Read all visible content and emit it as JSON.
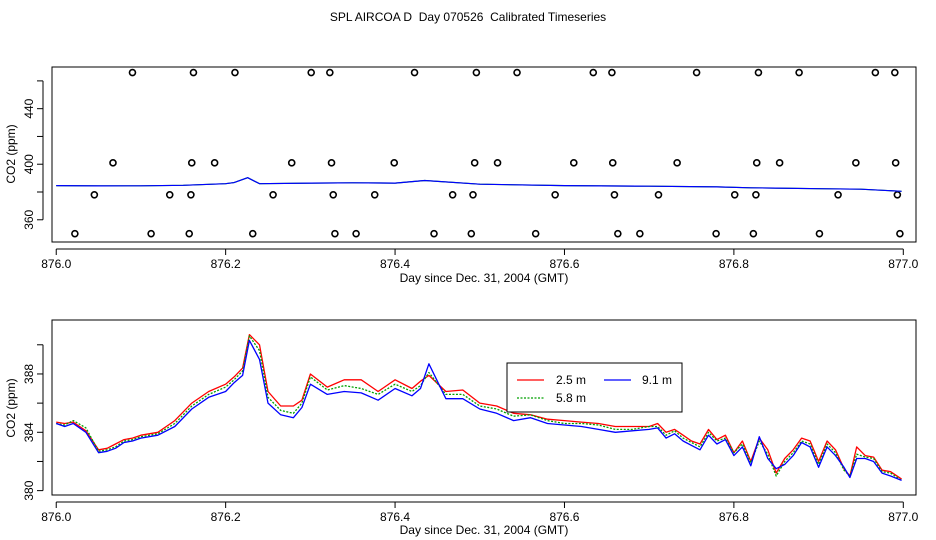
{
  "page_title": "SPL AIRCOA D  Day 070526  Calibrated Timeseries",
  "chart_data": [
    {
      "type": "scatter",
      "xlabel": "Day since Dec. 31, 2004 (GMT)",
      "ylabel": "CO2 (ppm)",
      "xlim": [
        875.995,
        877.015
      ],
      "ylim": [
        344,
        470
      ],
      "xticks": [
        876.0,
        876.2,
        876.4,
        876.6,
        876.8,
        877.0
      ],
      "xtick_labels": [
        "876.0",
        "876.2",
        "876.4",
        "876.6",
        "876.8",
        "877.0"
      ],
      "yticks": [
        360,
        400,
        440
      ],
      "ytick_labels": [
        "360",
        "400",
        "440"
      ],
      "yticks_minor": [
        380,
        420,
        460
      ],
      "calibration_points": [
        {
          "x": 876.022,
          "y": 350
        },
        {
          "x": 876.112,
          "y": 350
        },
        {
          "x": 876.157,
          "y": 350
        },
        {
          "x": 876.232,
          "y": 350
        },
        {
          "x": 876.329,
          "y": 350
        },
        {
          "x": 876.354,
          "y": 350
        },
        {
          "x": 876.446,
          "y": 350
        },
        {
          "x": 876.49,
          "y": 350
        },
        {
          "x": 876.566,
          "y": 350
        },
        {
          "x": 876.663,
          "y": 350
        },
        {
          "x": 876.689,
          "y": 350
        },
        {
          "x": 876.779,
          "y": 350
        },
        {
          "x": 876.823,
          "y": 350
        },
        {
          "x": 876.901,
          "y": 350
        },
        {
          "x": 876.996,
          "y": 350
        },
        {
          "x": 876.045,
          "y": 378
        },
        {
          "x": 876.134,
          "y": 378
        },
        {
          "x": 876.159,
          "y": 378
        },
        {
          "x": 876.256,
          "y": 378
        },
        {
          "x": 876.327,
          "y": 378
        },
        {
          "x": 876.376,
          "y": 378
        },
        {
          "x": 876.468,
          "y": 378
        },
        {
          "x": 876.492,
          "y": 378
        },
        {
          "x": 876.589,
          "y": 378
        },
        {
          "x": 876.659,
          "y": 378
        },
        {
          "x": 876.711,
          "y": 378
        },
        {
          "x": 876.801,
          "y": 378
        },
        {
          "x": 876.826,
          "y": 378
        },
        {
          "x": 876.923,
          "y": 378
        },
        {
          "x": 876.993,
          "y": 378
        },
        {
          "x": 876.067,
          "y": 401
        },
        {
          "x": 876.16,
          "y": 401
        },
        {
          "x": 876.187,
          "y": 401
        },
        {
          "x": 876.278,
          "y": 401
        },
        {
          "x": 876.325,
          "y": 401
        },
        {
          "x": 876.399,
          "y": 401
        },
        {
          "x": 876.494,
          "y": 401
        },
        {
          "x": 876.521,
          "y": 401
        },
        {
          "x": 876.611,
          "y": 401
        },
        {
          "x": 876.657,
          "y": 401
        },
        {
          "x": 876.733,
          "y": 401
        },
        {
          "x": 876.827,
          "y": 401
        },
        {
          "x": 876.854,
          "y": 401
        },
        {
          "x": 876.944,
          "y": 401
        },
        {
          "x": 876.991,
          "y": 401
        },
        {
          "x": 876.09,
          "y": 466
        },
        {
          "x": 876.162,
          "y": 466
        },
        {
          "x": 876.211,
          "y": 466
        },
        {
          "x": 876.301,
          "y": 466
        },
        {
          "x": 876.323,
          "y": 466
        },
        {
          "x": 876.423,
          "y": 466
        },
        {
          "x": 876.496,
          "y": 466
        },
        {
          "x": 876.544,
          "y": 466
        },
        {
          "x": 876.634,
          "y": 466
        },
        {
          "x": 876.656,
          "y": 466
        },
        {
          "x": 876.756,
          "y": 466
        },
        {
          "x": 876.829,
          "y": 466
        },
        {
          "x": 876.877,
          "y": 466
        },
        {
          "x": 876.967,
          "y": 466
        },
        {
          "x": 876.99,
          "y": 466
        }
      ],
      "series_line": {
        "name": "CO2 timeseries",
        "color": "#0000ff",
        "x": [
          876.0,
          876.05,
          876.1,
          876.15,
          876.2,
          876.21,
          876.226,
          876.24,
          876.3,
          876.35,
          876.4,
          876.435,
          876.5,
          876.6,
          876.7,
          876.78,
          876.82,
          876.85,
          876.9,
          876.95,
          876.998
        ],
        "y": [
          384.6,
          384.4,
          384.5,
          384.8,
          386.0,
          386.8,
          390.3,
          386.0,
          386.4,
          386.6,
          386.4,
          388.3,
          385.6,
          384.6,
          384.2,
          383.7,
          383.0,
          382.8,
          382.4,
          382.0,
          380.5
        ]
      }
    },
    {
      "type": "line",
      "xlabel": "Day since Dec. 31, 2004 (GMT)",
      "ylabel": "CO2 (ppm)",
      "xlim": [
        875.995,
        877.015
      ],
      "ylim": [
        379.7,
        391.7
      ],
      "xticks": [
        876.0,
        876.2,
        876.4,
        876.6,
        876.8,
        877.0
      ],
      "xtick_labels": [
        "876.0",
        "876.2",
        "876.4",
        "876.6",
        "876.8",
        "877.0"
      ],
      "yticks": [
        380,
        384,
        388
      ],
      "ytick_labels": [
        "380",
        "384",
        "388"
      ],
      "yticks_minor": [
        382,
        386,
        390
      ],
      "legend": {
        "placement": "upper-center-right",
        "entries": [
          {
            "label": "2.5 m",
            "color": "#ff0000"
          },
          {
            "label": "5.8 m",
            "color": "#00a000"
          },
          {
            "label": "9.1 m",
            "color": "#0000ff"
          }
        ]
      },
      "series": [
        {
          "name": "2.5 m",
          "color": "#ff0000",
          "x": [
            876.0,
            876.01,
            876.02,
            876.035,
            876.05,
            876.06,
            876.07,
            876.08,
            876.09,
            876.1,
            876.12,
            876.14,
            876.16,
            876.18,
            876.2,
            876.21,
            876.22,
            876.228,
            876.24,
            876.25,
            876.265,
            876.28,
            876.29,
            876.3,
            876.32,
            876.34,
            876.36,
            876.38,
            876.4,
            876.42,
            876.43,
            876.44,
            876.46,
            876.48,
            876.5,
            876.52,
            876.54,
            876.56,
            876.58,
            876.6,
            876.62,
            876.64,
            876.66,
            876.68,
            876.7,
            876.71,
            876.72,
            876.73,
            876.74,
            876.75,
            876.76,
            876.77,
            876.78,
            876.79,
            876.8,
            876.81,
            876.82,
            876.83,
            876.84,
            876.85,
            876.86,
            876.87,
            876.88,
            876.89,
            876.9,
            876.91,
            876.92,
            876.93,
            876.937,
            876.945,
            876.955,
            876.965,
            876.975,
            876.985,
            876.998
          ],
          "y": [
            384.7,
            384.6,
            384.7,
            384.1,
            382.8,
            382.9,
            383.2,
            383.5,
            383.6,
            383.8,
            384.0,
            384.8,
            386.0,
            386.8,
            387.3,
            387.8,
            388.4,
            390.7,
            390.0,
            386.8,
            385.8,
            385.8,
            386.2,
            388.0,
            387.1,
            387.6,
            387.6,
            386.8,
            387.6,
            387.0,
            387.5,
            387.9,
            386.8,
            386.9,
            386.0,
            385.8,
            385.3,
            385.2,
            384.9,
            384.8,
            384.7,
            384.6,
            384.4,
            384.4,
            384.4,
            384.6,
            384.0,
            384.2,
            383.8,
            383.4,
            383.2,
            384.2,
            383.5,
            383.8,
            382.6,
            383.4,
            382.0,
            383.6,
            382.8,
            381.2,
            382.2,
            382.8,
            383.6,
            383.4,
            382.0,
            383.4,
            382.8,
            381.5,
            381.0,
            383.0,
            382.4,
            382.3,
            381.4,
            381.3,
            380.8
          ]
        },
        {
          "name": "5.8 m",
          "color": "#00a000",
          "x": [
            876.0,
            876.01,
            876.02,
            876.035,
            876.05,
            876.06,
            876.07,
            876.08,
            876.09,
            876.1,
            876.12,
            876.14,
            876.16,
            876.18,
            876.2,
            876.21,
            876.22,
            876.228,
            876.24,
            876.25,
            876.265,
            876.28,
            876.29,
            876.3,
            876.32,
            876.34,
            876.36,
            876.38,
            876.4,
            876.42,
            876.43,
            876.44,
            876.46,
            876.48,
            876.5,
            876.52,
            876.54,
            876.56,
            876.58,
            876.6,
            876.62,
            876.64,
            876.66,
            876.68,
            876.7,
            876.71,
            876.72,
            876.73,
            876.74,
            876.75,
            876.76,
            876.77,
            876.78,
            876.79,
            876.8,
            876.81,
            876.82,
            876.83,
            876.84,
            876.85,
            876.86,
            876.87,
            876.88,
            876.89,
            876.9,
            876.91,
            876.92,
            876.93,
            876.937,
            876.945,
            876.955,
            876.965,
            876.975,
            876.985,
            876.998
          ],
          "y": [
            384.6,
            384.5,
            384.8,
            384.3,
            382.7,
            382.8,
            383.0,
            383.4,
            383.5,
            383.7,
            383.9,
            384.6,
            385.8,
            386.6,
            387.1,
            387.6,
            388.2,
            390.6,
            389.6,
            386.4,
            385.5,
            385.3,
            386.0,
            387.8,
            386.9,
            387.2,
            387.0,
            386.6,
            387.3,
            386.8,
            387.2,
            388.1,
            386.6,
            386.6,
            385.8,
            385.6,
            385.1,
            385.2,
            384.8,
            384.6,
            384.6,
            384.5,
            384.2,
            384.2,
            384.4,
            384.4,
            383.8,
            384.1,
            383.6,
            383.3,
            383.0,
            384.0,
            383.4,
            383.6,
            382.6,
            383.2,
            381.9,
            383.4,
            382.5,
            381.0,
            382.0,
            382.6,
            383.4,
            383.2,
            381.8,
            383.2,
            382.6,
            381.4,
            381.0,
            382.5,
            382.3,
            382.2,
            381.3,
            381.2,
            380.7
          ]
        },
        {
          "name": "9.1 m",
          "color": "#0000ff",
          "x": [
            876.0,
            876.01,
            876.02,
            876.035,
            876.05,
            876.06,
            876.07,
            876.08,
            876.09,
            876.1,
            876.12,
            876.14,
            876.16,
            876.18,
            876.2,
            876.21,
            876.22,
            876.228,
            876.24,
            876.25,
            876.265,
            876.28,
            876.29,
            876.3,
            876.32,
            876.34,
            876.36,
            876.38,
            876.4,
            876.42,
            876.43,
            876.44,
            876.46,
            876.48,
            876.5,
            876.52,
            876.54,
            876.56,
            876.58,
            876.6,
            876.62,
            876.64,
            876.66,
            876.68,
            876.7,
            876.71,
            876.72,
            876.73,
            876.74,
            876.75,
            876.76,
            876.77,
            876.78,
            876.79,
            876.8,
            876.81,
            876.82,
            876.83,
            876.84,
            876.85,
            876.86,
            876.87,
            876.88,
            876.89,
            876.9,
            876.91,
            876.92,
            876.93,
            876.937,
            876.945,
            876.955,
            876.965,
            876.975,
            876.985,
            876.998
          ],
          "y": [
            384.6,
            384.4,
            384.6,
            384.0,
            382.6,
            382.7,
            382.9,
            383.3,
            383.4,
            383.6,
            383.8,
            384.4,
            385.6,
            386.4,
            386.8,
            387.4,
            387.9,
            390.3,
            389.0,
            386.0,
            385.2,
            385.0,
            385.7,
            387.3,
            386.6,
            386.8,
            386.7,
            386.2,
            387.0,
            386.5,
            387.0,
            388.7,
            386.3,
            386.3,
            385.6,
            385.3,
            384.8,
            385.0,
            384.6,
            384.5,
            384.4,
            384.2,
            384.0,
            384.1,
            384.2,
            384.3,
            383.6,
            383.9,
            383.4,
            383.1,
            382.8,
            383.8,
            383.2,
            383.5,
            382.4,
            383.0,
            381.7,
            383.7,
            382.2,
            381.5,
            381.8,
            382.4,
            383.3,
            383.0,
            381.6,
            383.0,
            382.4,
            381.6,
            380.9,
            382.2,
            382.2,
            382.0,
            381.2,
            381.0,
            380.7
          ]
        }
      ]
    }
  ]
}
